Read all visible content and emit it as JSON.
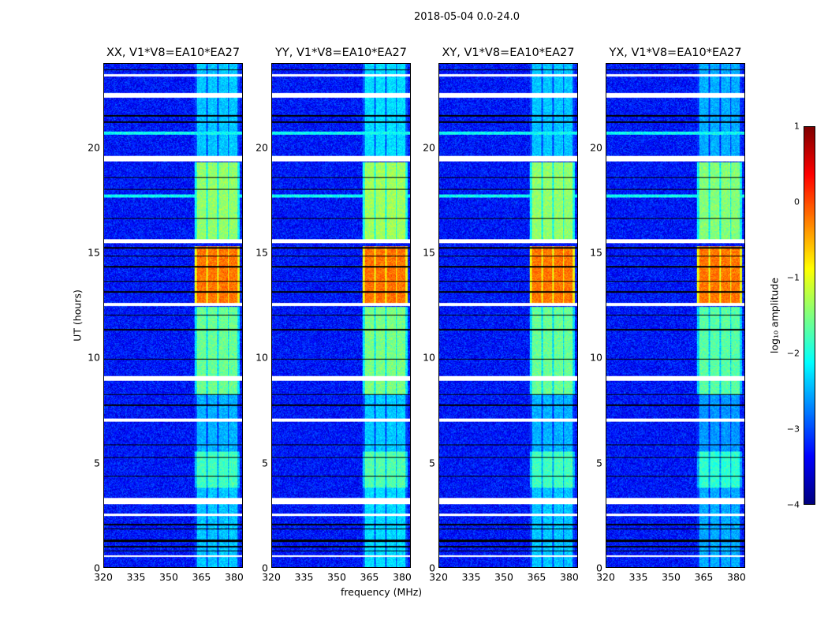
{
  "chart_data": {
    "type": "heatmap",
    "title": "2018-05-04 0.0-24.0",
    "xlabel": "frequency (MHz)",
    "ylabel": "UT (hours)",
    "xlim": [
      320,
      384
    ],
    "ylim": [
      0,
      24
    ],
    "xticks": [
      "320",
      "335",
      "350",
      "365",
      "380"
    ],
    "xtick_values": [
      320,
      335,
      350,
      365,
      380
    ],
    "yticks": [
      "0",
      "5",
      "10",
      "15",
      "20"
    ],
    "ytick_values": [
      0,
      5,
      10,
      15,
      20
    ],
    "panels": [
      {
        "title": "XX, V1*V8=EA10*EA27",
        "strength": 1.0
      },
      {
        "title": "YY, V1*V8=EA10*EA27",
        "strength": 1.05
      },
      {
        "title": "XY, V1*V8=EA10*EA27",
        "strength": 1.0
      },
      {
        "title": "YX, V1*V8=EA10*EA27",
        "strength": 0.95
      }
    ],
    "colorbar": {
      "label": "log₁₀ amplitude",
      "range": [
        -4,
        1
      ],
      "ticks": [
        "1",
        "0",
        "−1",
        "−2",
        "−3",
        "−4"
      ],
      "tick_values": [
        1,
        0,
        -1,
        -2,
        -3,
        -4
      ],
      "colormap": "jet"
    },
    "background_log_amplitude": -3.3,
    "bright_channels_mhz": [
      [
        363,
        367.5
      ],
      [
        368,
        372.5
      ],
      [
        373,
        377.5
      ],
      [
        378,
        382
      ]
    ],
    "channel_activity": [
      {
        "ut": [
          19.6,
          24
        ],
        "value": -2.4
      },
      {
        "ut": [
          15.6,
          19.3
        ],
        "value": -1.4
      },
      {
        "ut": [
          12.6,
          15.3
        ],
        "value": -0.2
      },
      {
        "ut": [
          8.2,
          12.4
        ],
        "value": -1.6
      },
      {
        "ut": [
          5.5,
          8.2
        ],
        "value": -2.5
      },
      {
        "ut": [
          3.8,
          5.5
        ],
        "value": -1.8
      },
      {
        "ut": [
          0,
          3.8
        ],
        "value": -2.4
      }
    ],
    "rfi_lines_ut": [
      20.7,
      17.7
    ],
    "flagged_white_ut": [
      [
        23.4,
        23.5
      ],
      [
        22.4,
        22.6
      ],
      [
        19.35,
        19.6
      ],
      [
        15.45,
        15.65
      ],
      [
        12.45,
        12.6
      ],
      [
        8.9,
        9.1
      ],
      [
        6.95,
        7.1
      ],
      [
        3.0,
        3.3
      ],
      [
        2.45,
        2.55
      ],
      [
        0.5,
        0.55
      ]
    ],
    "flagged_black_ut": [
      [
        23.7,
        23.75
      ],
      [
        21.5,
        21.55
      ],
      [
        21.2,
        21.25
      ],
      [
        18.55,
        18.6
      ],
      [
        18.0,
        18.05
      ],
      [
        16.6,
        16.65
      ],
      [
        15.2,
        15.25
      ],
      [
        14.8,
        14.85
      ],
      [
        14.3,
        14.35
      ],
      [
        13.6,
        13.65
      ],
      [
        13.1,
        13.15
      ],
      [
        12.0,
        12.05
      ],
      [
        11.3,
        11.35
      ],
      [
        9.9,
        9.95
      ],
      [
        8.2,
        8.25
      ],
      [
        7.7,
        7.75
      ],
      [
        5.8,
        5.85
      ],
      [
        5.2,
        5.25
      ],
      [
        4.3,
        4.35
      ],
      [
        2.0,
        2.05
      ],
      [
        1.8,
        1.85
      ],
      [
        1.2,
        1.3
      ],
      [
        0.95,
        1.0
      ],
      [
        0.75,
        0.8
      ]
    ]
  }
}
